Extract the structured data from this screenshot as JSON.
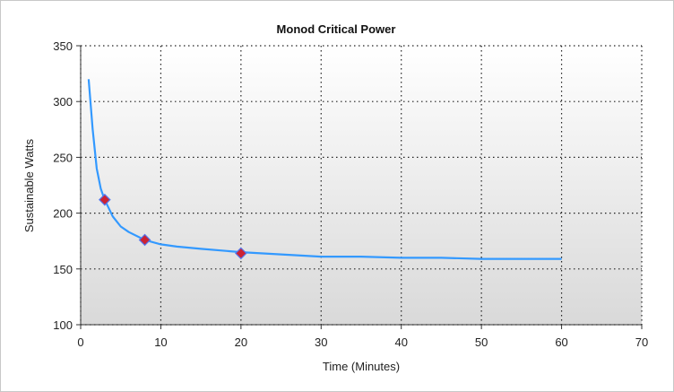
{
  "chart_data": {
    "type": "line",
    "title": "Monod Critical Power",
    "xlabel": "Time (Minutes)",
    "ylabel": "Sustainable Watts",
    "xlim": [
      0,
      70
    ],
    "ylim": [
      100,
      350
    ],
    "xticks": [
      0,
      10,
      20,
      30,
      40,
      50,
      60,
      70
    ],
    "yticks": [
      100,
      150,
      200,
      250,
      300,
      350
    ],
    "grid": true,
    "series": [
      {
        "type": "line",
        "color": "#3399ff",
        "x": [
          1,
          1.5,
          2,
          2.5,
          3,
          4,
          5,
          6,
          8,
          10,
          12,
          15,
          20,
          25,
          30,
          35,
          40,
          45,
          50,
          55,
          60
        ],
        "y": [
          320,
          275,
          240,
          222,
          212,
          197,
          188,
          183,
          176,
          172,
          170,
          168,
          165,
          163,
          161,
          161,
          160,
          160,
          159,
          159,
          159
        ]
      },
      {
        "type": "scatter",
        "marker": "diamond",
        "color": "#cc2233",
        "edge_color": "#5577ee",
        "x": [
          3,
          8,
          20
        ],
        "y": [
          212,
          176,
          164
        ]
      }
    ]
  }
}
